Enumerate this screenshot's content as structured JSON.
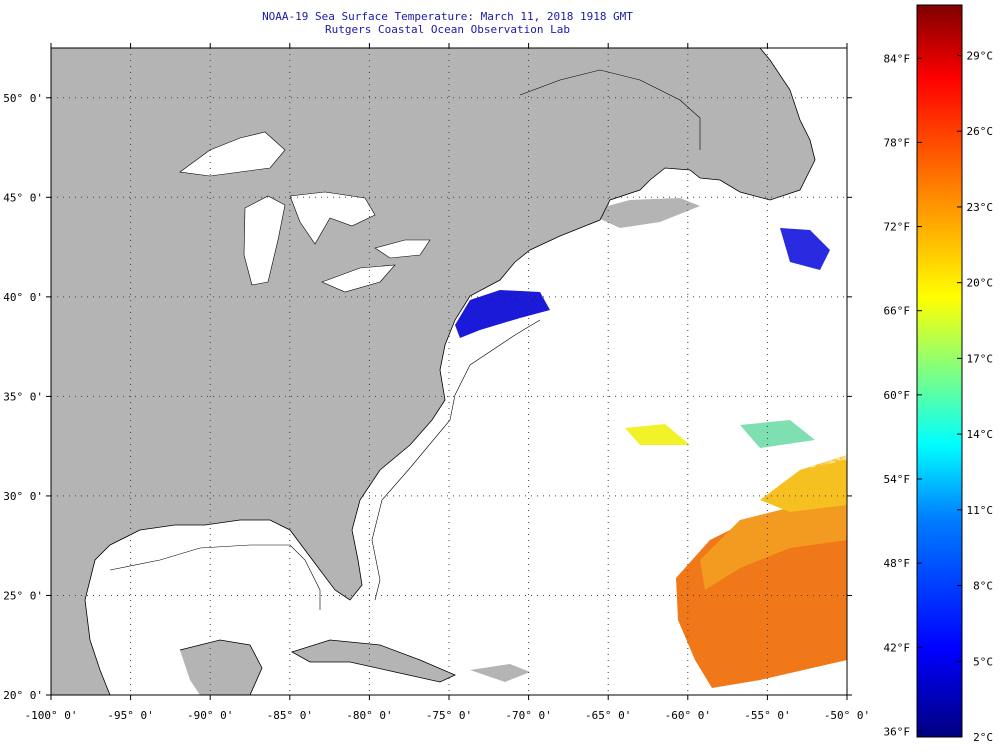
{
  "header": {
    "title": "NOAA-19 Sea Surface Temperature:  March 11, 2018 1918 GMT",
    "subtitle": "Rutgers Coastal Ocean Observation Lab"
  },
  "map": {
    "lon_range": [
      -100,
      -50
    ],
    "lat_range": [
      20,
      52.5
    ],
    "lon_ticks": [
      -100,
      -95,
      -90,
      -85,
      -80,
      -75,
      -70,
      -65,
      -60,
      -55,
      -50
    ],
    "lat_ticks": [
      20,
      25,
      30,
      35,
      40,
      45,
      50
    ],
    "lon_tick_labels": [
      "-100° 0'",
      "-95° 0'",
      "-90° 0'",
      "-85° 0'",
      "-80° 0'",
      "-75° 0'",
      "-70° 0'",
      "-65° 0'",
      "-60° 0'",
      "-55° 0'",
      "-50° 0'"
    ],
    "lat_tick_labels": [
      "20° 0'",
      "25° 0'",
      "30° 0'",
      "35° 0'",
      "40° 0'",
      "45° 0'",
      "50° 0'"
    ],
    "land_color": "#b4b4b4",
    "ocean_no_data_color": "#ffffff",
    "grid": "dotted"
  },
  "colorbar": {
    "celsius_range": [
      2,
      31
    ],
    "celsius_labels": [
      "2°C",
      "5°C",
      "8°C",
      "11°C",
      "14°C",
      "17°C",
      "20°C",
      "23°C",
      "26°C",
      "29°C"
    ],
    "celsius_values": [
      2,
      5,
      8,
      11,
      14,
      17,
      20,
      23,
      26,
      29
    ],
    "fahrenheit_labels": [
      "36°F",
      "42°F",
      "48°F",
      "54°F",
      "60°F",
      "66°F",
      "72°F",
      "78°F",
      "84°F"
    ],
    "fahrenheit_values": [
      36,
      42,
      48,
      54,
      60,
      66,
      72,
      78,
      84
    ],
    "palette": [
      "#00007f",
      "#0000ff",
      "#0080ff",
      "#00ffff",
      "#80ff80",
      "#ffff00",
      "#ff8000",
      "#ff0000",
      "#7f0000"
    ]
  }
}
